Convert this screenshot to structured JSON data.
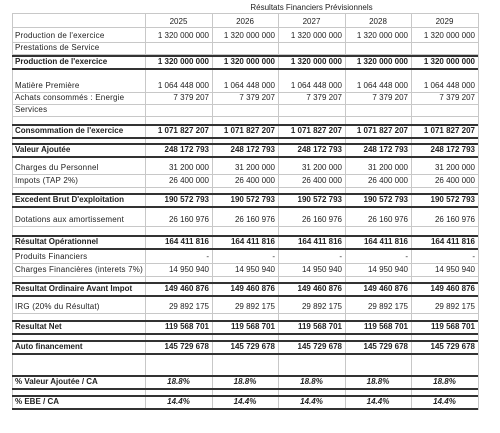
{
  "title": "Résultats Financiers Prévisionnels",
  "years": [
    "2025",
    "2026",
    "2027",
    "2028",
    "2029"
  ],
  "rows": [
    {
      "label": "Production de l'exercice",
      "values": [
        "1 320 000 000",
        "1 320 000 000",
        "1 320 000 000",
        "1 320 000 000",
        "1 320 000 000"
      ],
      "bold": false
    },
    {
      "label": "Prestations de Service",
      "bold": false
    },
    {
      "label": "Production de l'exercice",
      "values": [
        "1 320 000 000",
        "1 320 000 000",
        "1 320 000 000",
        "1 320 000 000",
        "1 320 000 000"
      ],
      "bold": true
    },
    {
      "label": "Matière Première",
      "values": [
        "1 064 448 000",
        "1 064 448 000",
        "1 064 448 000",
        "1 064 448 000",
        "1 064 448 000"
      ],
      "bold": false
    },
    {
      "label": "Achats consommés : Energie",
      "values": [
        "7 379 207",
        "7 379 207",
        "7 379 207",
        "7 379 207",
        "7 379 207"
      ],
      "bold": false
    },
    {
      "label": "Services",
      "bold": false
    },
    {
      "label": "Consommation de l'exercice",
      "values": [
        "1 071 827 207",
        "1 071 827 207",
        "1 071 827 207",
        "1 071 827 207",
        "1 071 827 207"
      ],
      "bold": true
    },
    {
      "label": "Valeur Ajoutée",
      "values": [
        "248 172 793",
        "248 172 793",
        "248 172 793",
        "248 172 793",
        "248 172 793"
      ],
      "bold": true
    },
    {
      "label": "Charges du Personnel",
      "values": [
        "31 200 000",
        "31 200 000",
        "31 200 000",
        "31 200 000",
        "31 200 000"
      ],
      "bold": false
    },
    {
      "label": "Impots (TAP 2%)",
      "values": [
        "26 400 000",
        "26 400 000",
        "26 400 000",
        "26 400 000",
        "26 400 000"
      ],
      "bold": false
    },
    {
      "label": "Excedent Brut D'exploitation",
      "values": [
        "190 572 793",
        "190 572 793",
        "190 572 793",
        "190 572 793",
        "190 572 793"
      ],
      "bold": true
    },
    {
      "label": "Dotations aux amortissement",
      "values": [
        "26 160 976",
        "26 160 976",
        "26 160 976",
        "26 160 976",
        "26 160 976"
      ],
      "bold": false
    },
    {
      "label": "Résultat Opérationnel",
      "values": [
        "164 411 816",
        "164 411 816",
        "164 411 816",
        "164 411 816",
        "164 411 816"
      ],
      "bold": true
    },
    {
      "label": "Produits Financiers",
      "values": [
        "-",
        "-",
        "-",
        "-",
        "-"
      ],
      "bold": false
    },
    {
      "label": "Charges Financières (interets 7%)",
      "values": [
        "14 950 940",
        "14 950 940",
        "14 950 940",
        "14 950 940",
        "14 950 940"
      ],
      "bold": false
    },
    {
      "label": "Resultat Ordinaire Avant Impot",
      "values": [
        "149 460 876",
        "149 460 876",
        "149 460 876",
        "149 460 876",
        "149 460 876"
      ],
      "bold": true
    },
    {
      "label": "IRG (20% du Résultat)",
      "values": [
        "29 892 175",
        "29 892 175",
        "29 892 175",
        "29 892 175",
        "29 892 175"
      ],
      "bold": false
    },
    {
      "label": "Resultat Net",
      "values": [
        "119 568 701",
        "119 568 701",
        "119 568 701",
        "119 568 701",
        "119 568 701"
      ],
      "bold": true
    },
    {
      "label": "Auto financement",
      "values": [
        "145 729 678",
        "145 729 678",
        "145 729 678",
        "145 729 678",
        "145 729 678"
      ],
      "bold": true
    },
    {
      "label": "% Valeur Ajoutée / CA",
      "values": [
        "18.8%",
        "18.8%",
        "18.8%",
        "18.8%",
        "18.8%"
      ],
      "bold": true,
      "italic": true
    },
    {
      "label": "% EBE / CA",
      "values": [
        "14.4%",
        "14.4%",
        "14.4%",
        "14.4%",
        "14.4%"
      ],
      "bold": true,
      "italic": true
    }
  ]
}
